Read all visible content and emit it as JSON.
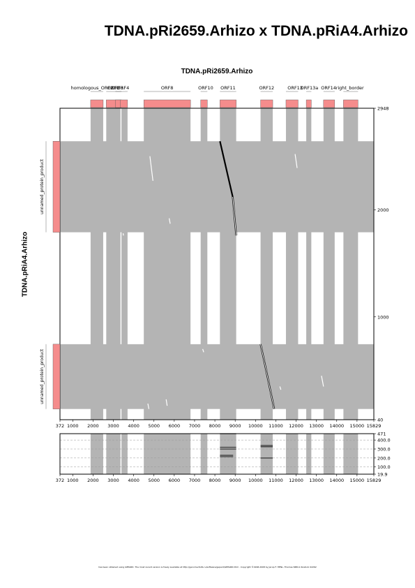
{
  "title": "TDNA.pRi2659.Arhizo x TDNA.pRiA4.Arhizo",
  "footer": "has been obtained using GEPARD. The most recent version is freely available at http://genome.tbdb.ru/software/gepard/GEPARD.html . Copyright ©1998-2008 by Jacop F. HENL, Thomas ISBN-1 Rostock 02262",
  "colors": {
    "match_band": "#b4b4b4",
    "feature_box": "#f58c8c",
    "dot_line": "#000000",
    "grid": "#999999"
  },
  "chart_data": [
    {
      "type": "scatter",
      "subtype": "dotplot",
      "xlabel": "TDNA.pRi2659.Arhizo",
      "ylabel": "TDNA.pRiA4.Arhizo",
      "xlim": [
        372,
        15829
      ],
      "ylim": [
        40,
        2948
      ],
      "x_ticks": [
        372,
        1000,
        2000,
        3000,
        4000,
        5000,
        6000,
        7000,
        8000,
        9000,
        10000,
        11000,
        12000,
        13000,
        14000,
        15000,
        15829
      ],
      "y_ticks": [
        2948,
        2000,
        1000,
        40
      ],
      "grid": false,
      "x_features": [
        {
          "label": "homologous_ORF2",
          "start": 1880,
          "end": 2500,
          "label_at": 1950
        },
        {
          "label": "ORF3",
          "start": 2650,
          "end": 3350,
          "label_at": 3000
        },
        {
          "label": "ORF3",
          "start": 3100,
          "end": 3400,
          "label_at": 3200
        },
        {
          "label": "ORF4",
          "start": 3350,
          "end": 3700,
          "label_at": 3480
        },
        {
          "label": "ORF8",
          "start": 4500,
          "end": 6800,
          "label_at": 5650
        },
        {
          "label": "ORF10",
          "start": 7300,
          "end": 7630,
          "label_at": 7550
        },
        {
          "label": "ORF11",
          "start": 8250,
          "end": 9050,
          "label_at": 8650
        },
        {
          "label": "ORF12",
          "start": 10250,
          "end": 10850,
          "label_at": 10550
        },
        {
          "label": "ORF13",
          "start": 11500,
          "end": 12100,
          "label_at": 11950
        },
        {
          "label": "ORF13a",
          "start": 12500,
          "end": 12750,
          "label_at": 12650
        },
        {
          "label": "ORF14",
          "start": 13350,
          "end": 13900,
          "label_at": 13600
        },
        {
          "label": "right_border",
          "start": 14330,
          "end": 15050,
          "label_at": 14650
        }
      ],
      "y_features": [
        {
          "label": "unnamed_protein_product",
          "start": 1790,
          "end": 2640
        },
        {
          "label": "unnamed_protein_product",
          "start": 140,
          "end": 745
        }
      ],
      "x_bands": [
        [
          1880,
          2500
        ],
        [
          2650,
          3350
        ],
        [
          3400,
          3700
        ],
        [
          4500,
          6800
        ],
        [
          7300,
          7630
        ],
        [
          8250,
          9050
        ],
        [
          10250,
          10850
        ],
        [
          11500,
          12100
        ],
        [
          12500,
          12750
        ],
        [
          13350,
          13900
        ],
        [
          14330,
          15050
        ]
      ],
      "y_bands": [
        [
          1790,
          2640
        ],
        [
          140,
          745
        ]
      ],
      "diagonals": [
        {
          "x1": 8250,
          "y1": 2640,
          "x2": 8880,
          "y2": 2120,
          "weight": "bold"
        },
        {
          "x1": 8880,
          "y1": 2120,
          "x2": 9050,
          "y2": 1760,
          "weight": "double"
        },
        {
          "x1": 10250,
          "y1": 745,
          "x2": 10450,
          "y2": 570,
          "weight": "double"
        },
        {
          "x1": 10450,
          "y1": 570,
          "x2": 10920,
          "y2": 140,
          "weight": "double"
        }
      ],
      "white_dots": [
        {
          "x1": 4800,
          "y1": 2500,
          "x2": 4950,
          "y2": 2270
        },
        {
          "x1": 5750,
          "y1": 1920,
          "x2": 5800,
          "y2": 1870
        },
        {
          "x1": 11950,
          "y1": 2520,
          "x2": 12050,
          "y2": 2390
        },
        {
          "x1": 3480,
          "y1": 1780,
          "x2": 3500,
          "y2": 1760
        },
        {
          "x1": 9300,
          "y1": 1500,
          "x2": 9350,
          "y2": 1440
        },
        {
          "x1": 10100,
          "y1": 1120,
          "x2": 10150,
          "y2": 1070
        },
        {
          "x1": 7400,
          "y1": 700,
          "x2": 7450,
          "y2": 670
        },
        {
          "x1": 13250,
          "y1": 450,
          "x2": 13350,
          "y2": 350
        },
        {
          "x1": 4700,
          "y1": 190,
          "x2": 4750,
          "y2": 140
        },
        {
          "x1": 5600,
          "y1": 230,
          "x2": 5650,
          "y2": 170
        },
        {
          "x1": 11200,
          "y1": 350,
          "x2": 11250,
          "y2": 320
        }
      ]
    },
    {
      "type": "area",
      "subtype": "match_profile",
      "xlim": [
        372,
        15829
      ],
      "x_ticks": [
        372,
        1000,
        2000,
        3000,
        4000,
        5000,
        6000,
        7000,
        8000,
        9000,
        10000,
        11000,
        12000,
        13000,
        14000,
        15000,
        15829
      ],
      "ylim": [
        19.9,
        471
      ],
      "y_ticks": [
        "471",
        "400.0",
        "300.0",
        "200.0",
        "100.0",
        "19.9"
      ],
      "y_tick_values": [
        471,
        400,
        300,
        200,
        100,
        19.9
      ],
      "grid": true,
      "bands": [
        [
          1880,
          2500
        ],
        [
          2650,
          3350
        ],
        [
          3400,
          3700
        ],
        [
          4500,
          6800
        ],
        [
          7300,
          7630
        ],
        [
          8250,
          9050
        ],
        [
          10250,
          10850
        ],
        [
          11500,
          12100
        ],
        [
          12500,
          12750
        ],
        [
          13350,
          13900
        ],
        [
          14330,
          15050
        ]
      ],
      "marks": [
        {
          "x1": 8250,
          "x2": 9050,
          "y": 471
        },
        {
          "x1": 8250,
          "x2": 9050,
          "y": 320
        },
        {
          "x1": 8250,
          "x2": 9050,
          "y": 300
        },
        {
          "x1": 8250,
          "x2": 8900,
          "y": 230
        },
        {
          "x1": 8250,
          "x2": 8900,
          "y": 215
        },
        {
          "x1": 10250,
          "x2": 10850,
          "y": 340
        },
        {
          "x1": 10250,
          "x2": 10850,
          "y": 325
        },
        {
          "x1": 10250,
          "x2": 10850,
          "y": 200
        }
      ]
    }
  ]
}
